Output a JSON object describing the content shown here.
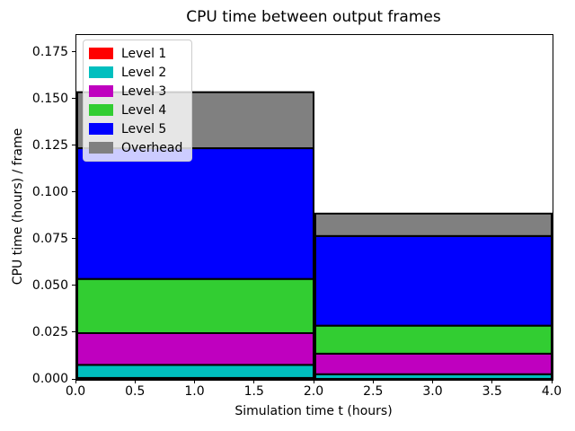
{
  "chart_data": {
    "type": "bar",
    "subtype": "stacked-histogram",
    "title": "CPU time between output frames",
    "xlabel": "Simulation time t (hours)",
    "ylabel": "CPU time (hours) / frame",
    "xlim": [
      0,
      4
    ],
    "ylim": [
      0,
      0.1846
    ],
    "grid": false,
    "background": "#ffffff",
    "edge_color": "#000000",
    "edge_width": 2,
    "xtick_values": [
      0.0,
      0.5,
      1.0,
      1.5,
      2.0,
      2.5,
      3.0,
      3.5,
      4.0
    ],
    "xtick_labels": [
      "0.0",
      "0.5",
      "1.0",
      "1.5",
      "2.0",
      "2.5",
      "3.0",
      "3.5",
      "4.0"
    ],
    "ytick_values": [
      0.0,
      0.025,
      0.05,
      0.075,
      0.1,
      0.125,
      0.15,
      0.175
    ],
    "ytick_labels": [
      "0.000",
      "0.025",
      "0.050",
      "0.075",
      "0.100",
      "0.125",
      "0.150",
      "0.175"
    ],
    "bars": [
      {
        "x_start": 0,
        "x_end": 2,
        "total": 0.154
      },
      {
        "x_start": 2,
        "x_end": 4,
        "total": 0.089
      }
    ],
    "series": [
      {
        "name": "Level 1",
        "color": "#ff0000",
        "values": [
          0.001,
          0.0005
        ]
      },
      {
        "name": "Level 2",
        "color": "#00bfbf",
        "values": [
          0.007,
          0.0025
        ]
      },
      {
        "name": "Level 3",
        "color": "#bf00bf",
        "values": [
          0.017,
          0.011
        ]
      },
      {
        "name": "Level 4",
        "color": "#32cd32",
        "values": [
          0.029,
          0.015
        ]
      },
      {
        "name": "Level 5",
        "color": "#0000ff",
        "values": [
          0.07,
          0.048
        ]
      },
      {
        "name": "Overhead",
        "color": "#808080",
        "values": [
          0.03,
          0.012
        ]
      }
    ],
    "legend": {
      "position": "upper left",
      "entries": [
        "Level 1",
        "Level 2",
        "Level 3",
        "Level 4",
        "Level 5",
        "Overhead"
      ]
    }
  }
}
